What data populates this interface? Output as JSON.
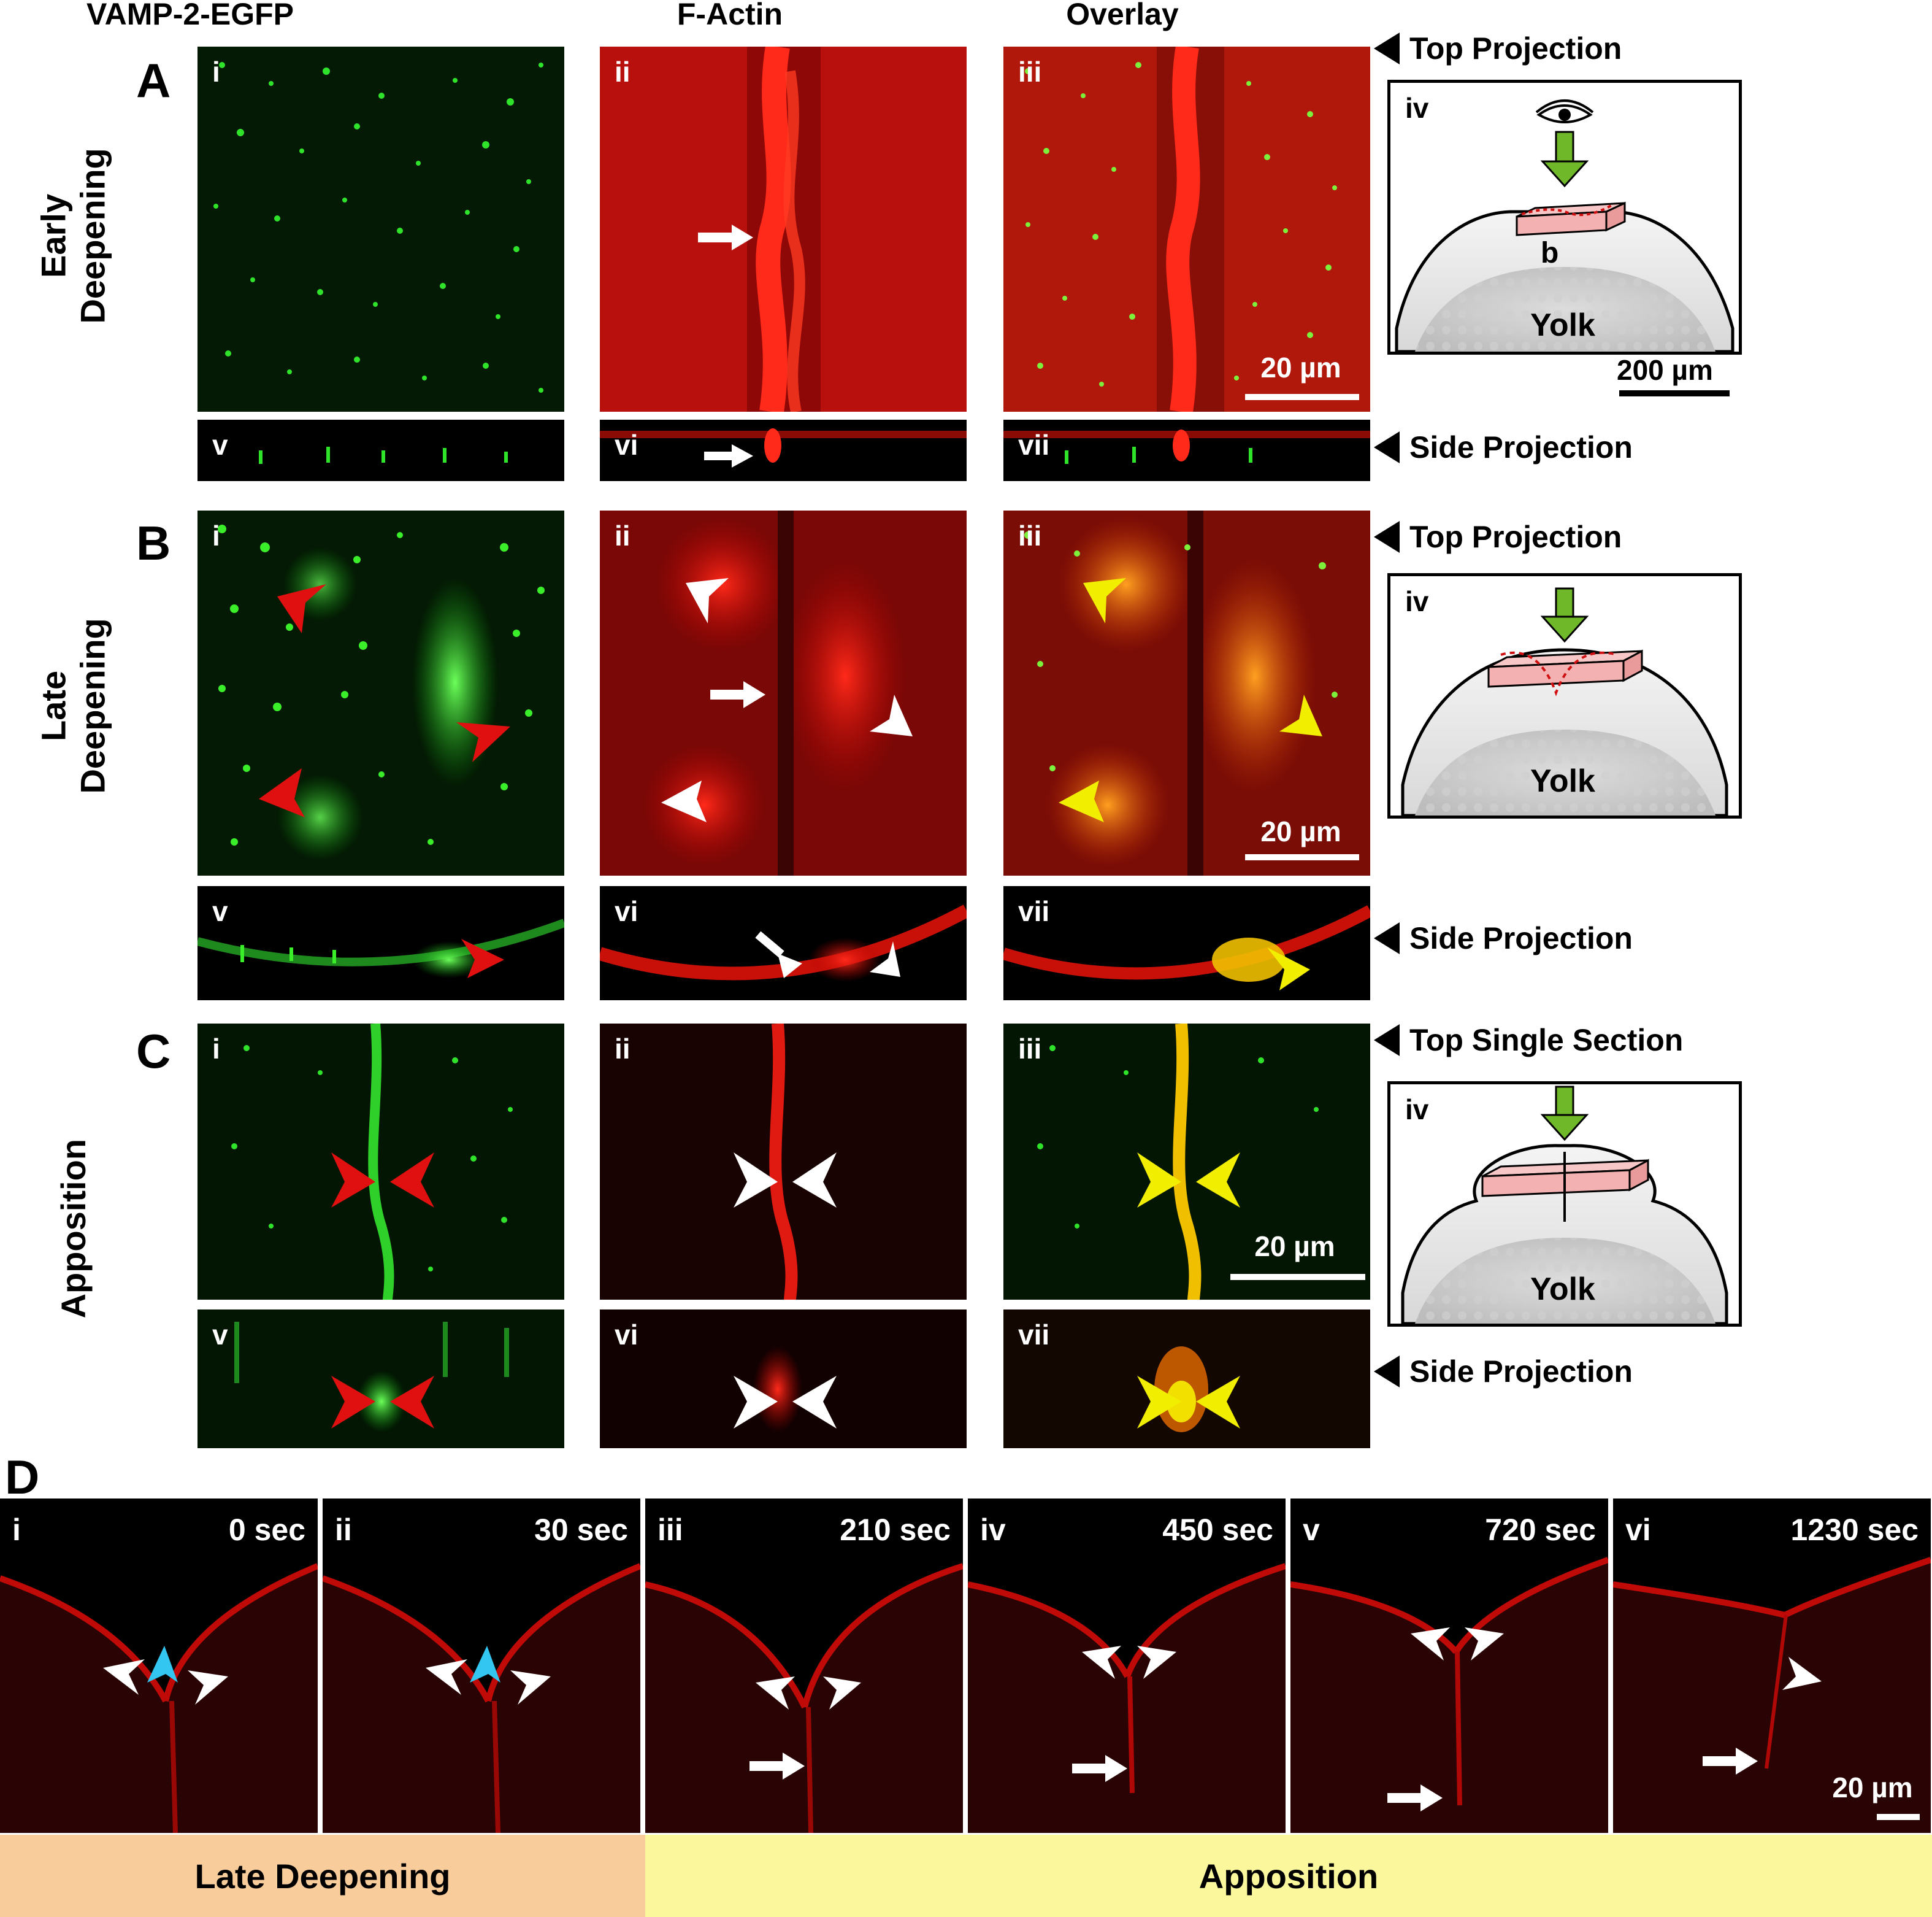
{
  "column_headers": [
    "VAMP-2-EGFP",
    "F-Actin",
    "Overlay"
  ],
  "sections": {
    "A": {
      "letter": "A",
      "row_label": "Early\nDeepening",
      "top_label": "Top Projection",
      "side_label": "Side Projection",
      "scale_bar": "20 µm",
      "schematic_scale": "200 µm",
      "schematic_marker": "b",
      "schematic_yolk": "Yolk"
    },
    "B": {
      "letter": "B",
      "row_label": "Late\nDeepening",
      "top_label": "Top Projection",
      "side_label": "Side Projection",
      "scale_bar": "20 µm",
      "schematic_yolk": "Yolk"
    },
    "C": {
      "letter": "C",
      "row_label": "Apposition",
      "top_label": "Top Single Section",
      "side_label": "Side Projection",
      "scale_bar": "20 µm",
      "schematic_yolk": "Yolk"
    },
    "D": {
      "letter": "D",
      "scale_bar": "20 µm"
    }
  },
  "panel_labels": {
    "top": [
      "i",
      "ii",
      "iii",
      "iv"
    ],
    "side": [
      "v",
      "vi",
      "vii"
    ]
  },
  "timelapse": [
    {
      "label": "i",
      "time": "0 sec"
    },
    {
      "label": "ii",
      "time": "30 sec"
    },
    {
      "label": "iii",
      "time": "210 sec"
    },
    {
      "label": "iv",
      "time": "450 sec"
    },
    {
      "label": "v",
      "time": "720 sec"
    },
    {
      "label": "vi",
      "time": "1230 sec"
    }
  ],
  "phase_bars": {
    "late": "Late Deepening",
    "apposition": "Apposition"
  },
  "colors": {
    "green": "#19c419",
    "red": "#e01010",
    "yellow": "#f2ee00",
    "cyan": "#33c6f0",
    "late_bar": "#f9cd9b",
    "apposition_bar": "#fbf79d",
    "schematic_arrow": "#6fb82a",
    "slab": "#f7c6c6"
  },
  "icons": [
    "eye-icon",
    "arrowhead-icon",
    "arrow-icon"
  ]
}
